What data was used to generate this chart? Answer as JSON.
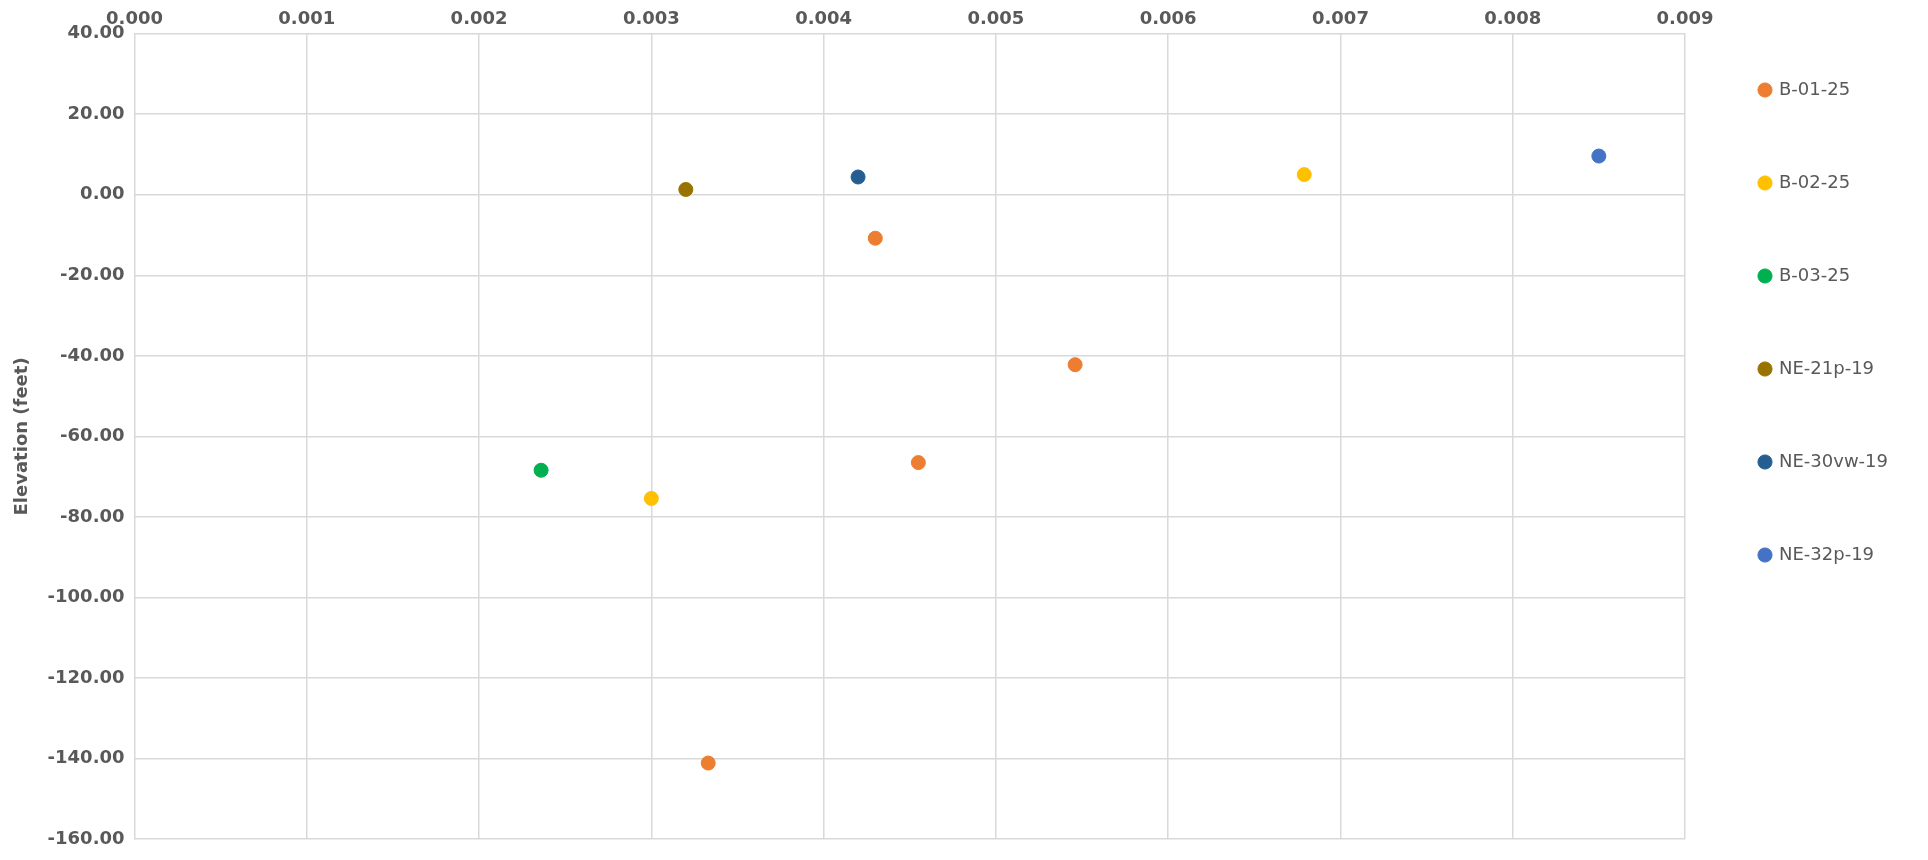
{
  "chart_data": {
    "type": "scatter",
    "ylabel": "Elevation (feet)",
    "xlim": [
      0,
      0.009
    ],
    "xticks": [
      {
        "value": 0,
        "label": "0.000"
      },
      {
        "value": 0.001,
        "label": "0.001"
      },
      {
        "value": 0.002,
        "label": "0.002"
      },
      {
        "value": 0.003,
        "label": "0.003"
      },
      {
        "value": 0.004,
        "label": "0.004"
      },
      {
        "value": 0.005,
        "label": "0.005"
      },
      {
        "value": 0.006,
        "label": "0.006"
      },
      {
        "value": 0.007,
        "label": "0.007"
      },
      {
        "value": 0.008,
        "label": "0.008"
      },
      {
        "value": 0.009,
        "label": "0.009"
      }
    ],
    "ylim": [
      -160,
      40
    ],
    "yticks": [
      {
        "value": 40,
        "label": "40.00"
      },
      {
        "value": 20,
        "label": "20.00"
      },
      {
        "value": 0,
        "label": "0.00"
      },
      {
        "value": -20,
        "label": "-20.00"
      },
      {
        "value": -40,
        "label": "-40.00"
      },
      {
        "value": -60,
        "label": "-60.00"
      },
      {
        "value": -80,
        "label": "-80.00"
      },
      {
        "value": -100,
        "label": "-100.00"
      },
      {
        "value": -120,
        "label": "-120.00"
      },
      {
        "value": -140,
        "label": "-140.00"
      },
      {
        "value": -160,
        "label": "-160.00"
      }
    ],
    "grid": true,
    "legend": "right",
    "marker": "circle",
    "series": [
      {
        "name": "B-01-25",
        "color": "#ed7d31",
        "x": [
          0.0043,
          0.00546,
          0.00455,
          0.00333
        ],
        "values": [
          -10.8,
          -42.2,
          -66.5,
          -141.1
        ]
      },
      {
        "name": "B-02-25",
        "color": "#ffc000",
        "x": [
          0.00679,
          0.003
        ],
        "values": [
          5.0,
          -75.4
        ]
      },
      {
        "name": "B-03-25",
        "color": "#00b050",
        "x": [
          0.00236
        ],
        "values": [
          -68.4
        ]
      },
      {
        "name": "NE-21p-19",
        "color": "#997300",
        "x": [
          0.0032
        ],
        "values": [
          1.3
        ]
      },
      {
        "name": "NE-30vw-19",
        "color": "#255e91",
        "x": [
          0.0042
        ],
        "values": [
          4.4
        ]
      },
      {
        "name": "NE-32p-19",
        "color": "#4472c4",
        "x": [
          0.0085
        ],
        "values": [
          9.6
        ]
      }
    ]
  }
}
